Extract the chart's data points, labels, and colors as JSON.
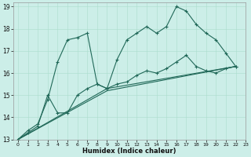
{
  "xlabel": "Humidex (Indice chaleur)",
  "xlim": [
    -0.5,
    23
  ],
  "ylim": [
    13,
    19.2
  ],
  "yticks": [
    13,
    14,
    15,
    16,
    17,
    18,
    19
  ],
  "xticks": [
    0,
    1,
    2,
    3,
    4,
    5,
    6,
    7,
    8,
    9,
    10,
    11,
    12,
    13,
    14,
    15,
    16,
    17,
    18,
    19,
    20,
    21,
    22,
    23
  ],
  "bg_color": "#cceee8",
  "line_color": "#206858",
  "grid_color": "#aaddcc",
  "line1": {
    "x": [
      0,
      1,
      2,
      3,
      4,
      5,
      6,
      7,
      8,
      9,
      10,
      11,
      12,
      13,
      14,
      15,
      16,
      17,
      18,
      19,
      20,
      21,
      22
    ],
    "y": [
      13.0,
      13.4,
      13.7,
      14.8,
      16.5,
      17.5,
      17.6,
      17.8,
      15.5,
      15.3,
      16.6,
      17.5,
      17.8,
      18.1,
      17.8,
      18.1,
      19.0,
      18.8,
      18.2,
      17.8,
      17.5,
      16.9,
      16.3
    ]
  },
  "line2": {
    "x": [
      0,
      1,
      2,
      3,
      4,
      5,
      6,
      7,
      8,
      9,
      10,
      11,
      12,
      13,
      14,
      15,
      16,
      17,
      18,
      19,
      20,
      21,
      22
    ],
    "y": [
      13.0,
      13.3,
      13.6,
      15.0,
      14.2,
      14.2,
      15.0,
      15.3,
      15.5,
      15.3,
      15.5,
      15.6,
      15.9,
      16.1,
      16.0,
      16.2,
      16.5,
      16.8,
      16.3,
      16.1,
      16.0,
      16.2,
      16.3
    ]
  },
  "line3": {
    "x": [
      0,
      9,
      22
    ],
    "y": [
      13.0,
      15.2,
      16.3
    ]
  },
  "line4": {
    "x": [
      0,
      9,
      22
    ],
    "y": [
      13.0,
      15.3,
      16.3
    ]
  }
}
